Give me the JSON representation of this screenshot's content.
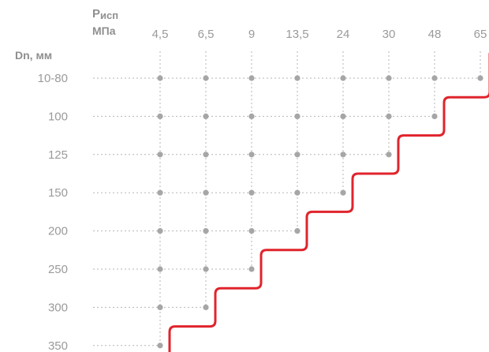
{
  "chart_data": {
    "type": "scatter",
    "x_header_main": "P",
    "x_header_sub": "исп",
    "x_header_unit": "МПа",
    "y_header": "Dn, мм",
    "x_categories": [
      "4,5",
      "6,5",
      "9",
      "13,5",
      "24",
      "30",
      "48",
      "65"
    ],
    "y_categories": [
      "10-80",
      "100",
      "125",
      "150",
      "200",
      "250",
      "300",
      "350"
    ],
    "max_pressure_index_per_row": [
      7,
      6,
      5,
      4,
      3,
      2,
      1,
      0
    ],
    "grid": true,
    "colors": {
      "points": "#a6a6a6",
      "boundary": "#e0242c",
      "text": "#9a9a9a",
      "grid": "#b5b5b5"
    }
  }
}
